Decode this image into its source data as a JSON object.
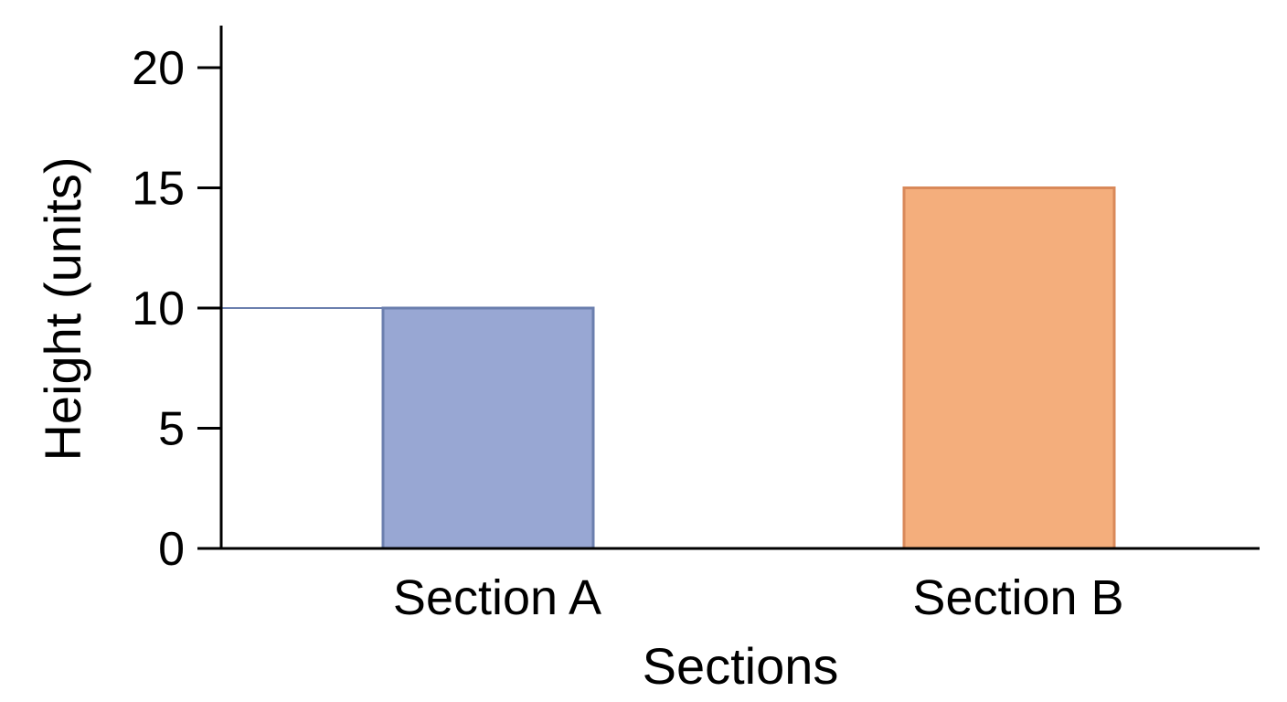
{
  "chart_data": {
    "type": "bar",
    "categories": [
      "Section A",
      "Section B"
    ],
    "values": [
      10,
      15
    ],
    "colors": [
      "#98a7d3",
      "#f4ae7c"
    ],
    "edge_colors": [
      "#6b7fae",
      "#d9895a"
    ],
    "xlabel": "Sections",
    "ylabel": "Height (units)",
    "ylim": [
      0,
      20
    ],
    "yticks": [
      0,
      5,
      10,
      15,
      20
    ],
    "reference_line": {
      "y": 10,
      "color": "#6b7fae"
    },
    "grid": false,
    "legend": "none"
  }
}
